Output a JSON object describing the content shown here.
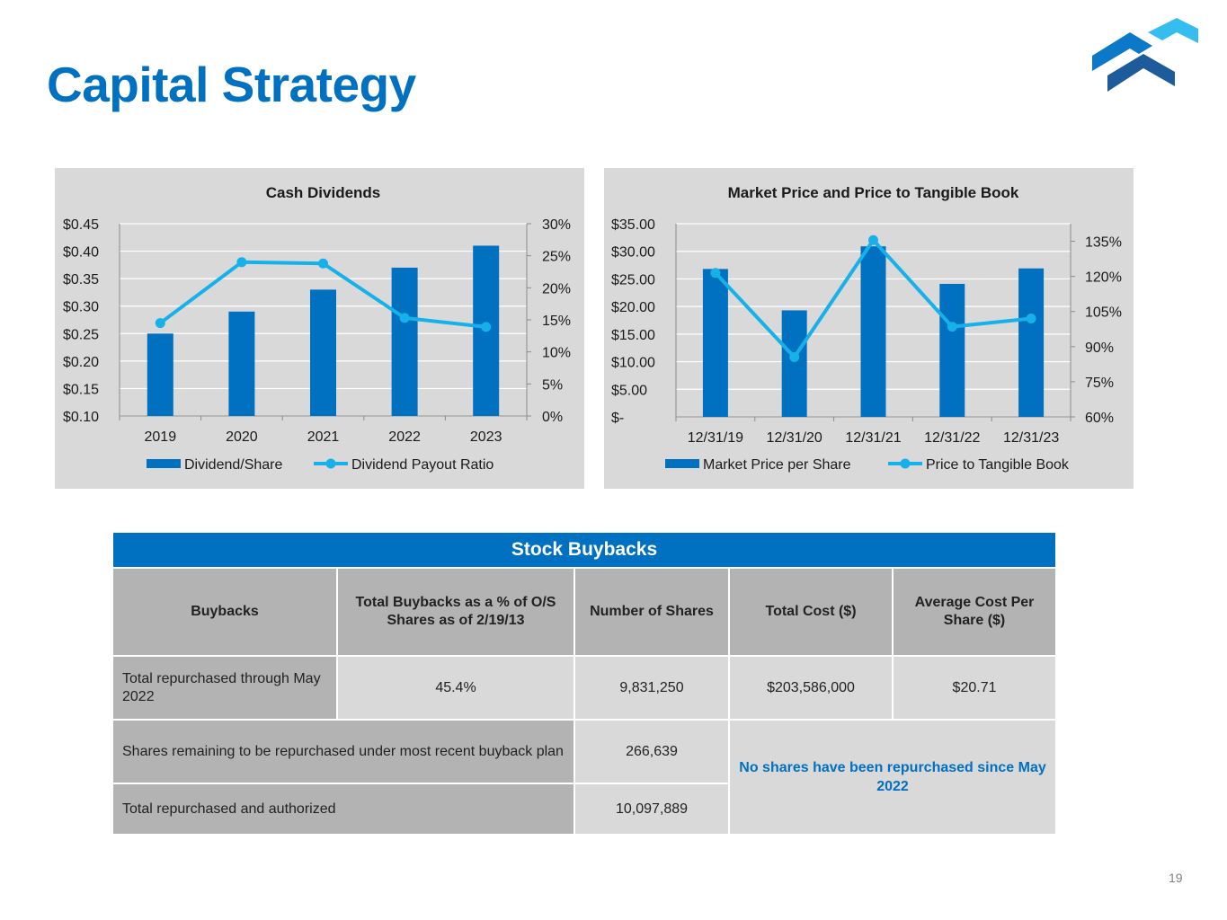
{
  "page": {
    "title": "Capital Strategy",
    "page_number": "19",
    "accent_color": "#0070c0"
  },
  "chart_data": [
    {
      "type": "bar",
      "title": "Cash Dividends",
      "categories": [
        "2019",
        "2020",
        "2021",
        "2022",
        "2023"
      ],
      "series": [
        {
          "name": "Dividend/Share",
          "kind": "bar",
          "axis": "left",
          "color": "#0070c0",
          "values": [
            0.25,
            0.29,
            0.33,
            0.37,
            0.41
          ]
        },
        {
          "name": "Dividend Payout Ratio",
          "kind": "line",
          "axis": "right",
          "color": "#17b1ea",
          "values": [
            14.5,
            24.0,
            23.8,
            15.3,
            13.9
          ]
        }
      ],
      "left_axis": {
        "min": 0.1,
        "max": 0.45,
        "ticks": [
          "$0.10",
          "$0.15",
          "$0.20",
          "$0.25",
          "$0.30",
          "$0.35",
          "$0.40",
          "$0.45"
        ]
      },
      "right_axis": {
        "min": 0,
        "max": 30,
        "ticks": [
          "0%",
          "5%",
          "10%",
          "15%",
          "20%",
          "25%",
          "30%"
        ]
      },
      "legend": "bottom"
    },
    {
      "type": "bar",
      "title": "Market Price and Price to Tangible Book",
      "categories": [
        "12/31/19",
        "12/31/20",
        "12/31/21",
        "12/31/22",
        "12/31/23"
      ],
      "series": [
        {
          "name": "Market Price per Share",
          "kind": "bar",
          "axis": "left",
          "color": "#0070c0",
          "values": [
            26.8,
            19.3,
            30.9,
            24.1,
            26.9
          ]
        },
        {
          "name": "Price to Tangible Book",
          "kind": "line",
          "axis": "right",
          "color": "#17b1ea",
          "values": [
            121.5,
            85.5,
            135.5,
            98.5,
            102.0
          ]
        }
      ],
      "left_axis": {
        "min": 0,
        "max": 35,
        "ticks": [
          "$-",
          "$5.00",
          "$10.00",
          "$15.00",
          "$20.00",
          "$25.00",
          "$30.00",
          "$35.00"
        ]
      },
      "right_axis": {
        "min": 60,
        "max": 142.5,
        "tick_values": [
          60,
          75,
          90,
          105,
          120,
          135
        ],
        "ticks": [
          "60%",
          "75%",
          "90%",
          "105%",
          "120%",
          "135%"
        ]
      },
      "legend": "bottom"
    }
  ],
  "buybacks": {
    "banner": "Stock Buybacks",
    "headers": [
      "Buybacks",
      "Total Buybacks as a % of O/S Shares as of 2/19/13",
      "Number of Shares",
      "Total Cost ($)",
      "Average Cost Per Share ($)"
    ],
    "row1": {
      "label": "Total repurchased through May 2022",
      "pct": "45.4%",
      "shares": "9,831,250",
      "cost": "$203,586,000",
      "avg": "$20.71"
    },
    "row2": {
      "label": "Shares remaining to be repurchased under most recent buyback plan",
      "shares": "266,639"
    },
    "row3": {
      "label": "Total repurchased and authorized",
      "shares": "10,097,889"
    },
    "note": "No shares have been repurchased since May 2022"
  }
}
